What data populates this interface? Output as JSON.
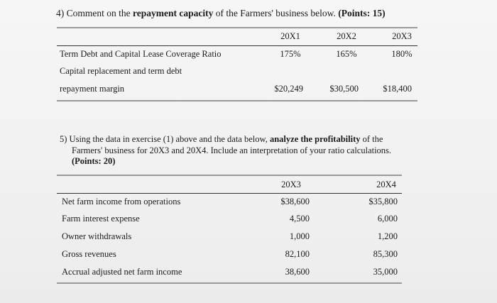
{
  "q4": {
    "number": "4)",
    "prefix": "Comment on the ",
    "bold": "repayment capacity",
    "suffix": " of the Farmers' business below. ",
    "points": "(Points: 15)",
    "columns": [
      "20X1",
      "20X2",
      "20X3"
    ],
    "rows": [
      {
        "label": "Term Debt and Capital Lease Coverage Ratio",
        "values": [
          "175%",
          "165%",
          "180%"
        ]
      },
      {
        "label": "Capital replacement and term debt",
        "values": [
          "",
          "",
          ""
        ]
      },
      {
        "label": "repayment margin",
        "values": [
          "$20,249",
          "$30,500",
          "$18,400"
        ]
      }
    ]
  },
  "q5": {
    "number": "5)",
    "line1_prefix": "Using the data in exercise (1) above and the data below, ",
    "line1_bold": "analyze the profitability",
    "line1_suffix": " of the",
    "line2": "Farmers' business for 20X3 and 20X4. Include an interpretation of your ratio calculations.",
    "points": "(Points: 20)",
    "columns": [
      "20X3",
      "20X4"
    ],
    "rows": [
      {
        "label": "Net farm income from operations",
        "values": [
          "$38,600",
          "$35,800"
        ]
      },
      {
        "label": "Farm interest expense",
        "values": [
          "4,500",
          "6,000"
        ]
      },
      {
        "label": "Owner withdrawals",
        "values": [
          "1,000",
          "1,200"
        ]
      },
      {
        "label": "Gross revenues",
        "values": [
          "82,100",
          "85,300"
        ]
      },
      {
        "label": "Accrual adjusted net farm income",
        "values": [
          "38,600",
          "35,000"
        ]
      }
    ]
  }
}
